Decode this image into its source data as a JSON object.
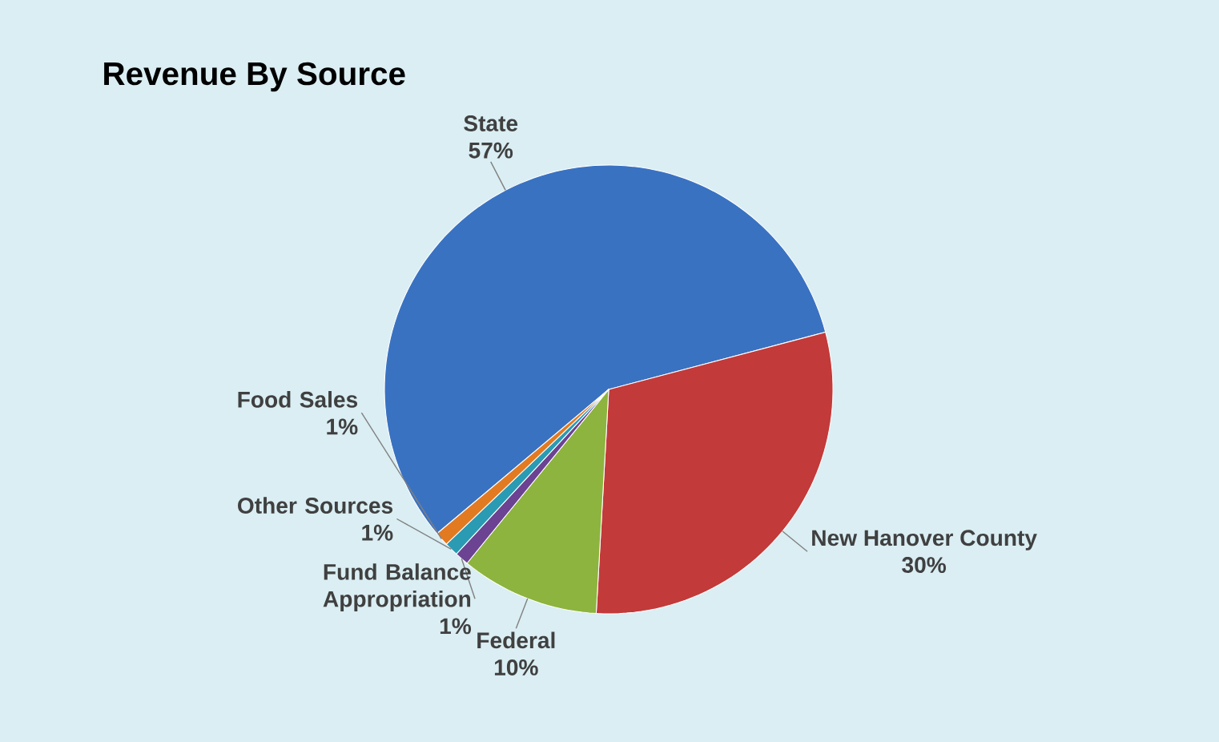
{
  "chart_data": {
    "type": "pie",
    "title": "Revenue By Source",
    "categories": [
      "State",
      "New Hanover County",
      "Federal",
      "Fund Balance Appropriation",
      "Other Sources",
      "Food Sales"
    ],
    "values": [
      57,
      30,
      10,
      1,
      1,
      1
    ],
    "value_labels": [
      "57%",
      "30%",
      "10%",
      "1%",
      "1%",
      "1%"
    ],
    "colors": [
      "#3a72c2",
      "#c23a3a",
      "#8db43e",
      "#6b4392",
      "#2a9bb2",
      "#e27a22"
    ]
  }
}
